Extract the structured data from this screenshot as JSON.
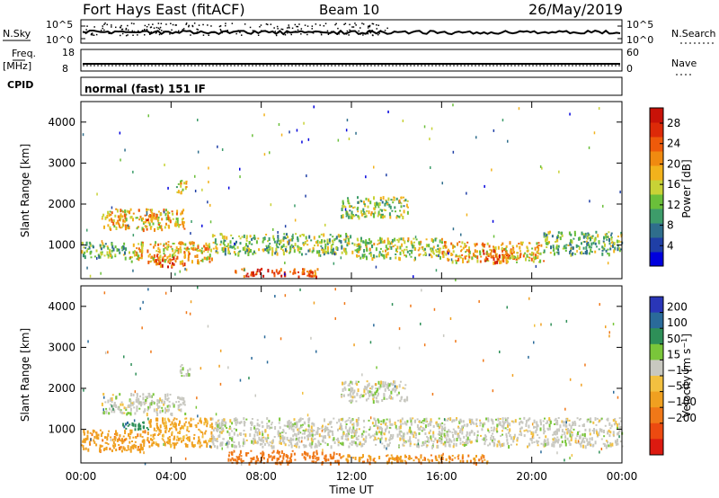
{
  "header": {
    "radar": "Fort Hays East (fitACF)",
    "beam": "Beam 10",
    "date": "26/May/2019"
  },
  "top_panels": {
    "nsky_label": "N.Sky",
    "nsky_ticks": [
      "10^5",
      "10^0"
    ],
    "nsearch_label": "N.Search",
    "nsearch_ticks": [
      "10^5",
      "10^0"
    ],
    "freq_label_line1": "Freq.",
    "freq_label_line2": "[MHz]",
    "freq_ticks": [
      "18",
      "8"
    ],
    "nave_label": "Nave",
    "nave_ticks": [
      "60",
      "0"
    ],
    "cpid_label": "CPID",
    "cpid_value": "normal (fast) 151 IF"
  },
  "colors": {
    "power": [
      "#0000dd",
      "#1f3fa6",
      "#2f6e8c",
      "#3d9c6a",
      "#6abf3a",
      "#c8d236",
      "#f2b21c",
      "#f08a10",
      "#ee5a0a",
      "#dd2a08",
      "#c81208"
    ],
    "velocity": [
      "#2a36b8",
      "#2a6a9a",
      "#2e8f58",
      "#7ac63a",
      "#c8c8c0",
      "#f2c040",
      "#f0a020",
      "#f07818",
      "#ec4a10",
      "#dc1a10"
    ]
  },
  "chart_data": [
    {
      "type": "heatmap",
      "name": "power",
      "ylabel": "Slant Range [km]",
      "xlabel": "",
      "ylim": [
        180,
        4500
      ],
      "y_ticks": [
        "1000",
        "2000",
        "3000",
        "4000"
      ],
      "y_tick_values": [
        1000,
        2000,
        3000,
        4000
      ],
      "colorbar_label": "Power [dB]",
      "colorbar_ticks": [
        "4",
        "8",
        "12",
        "16",
        "20",
        "24",
        "28"
      ],
      "colorbar_values": [
        4,
        8,
        12,
        16,
        20,
        24,
        28
      ],
      "clim": [
        0,
        31
      ],
      "echo_regions": [
        {
          "t0": 0.9,
          "t1": 4.6,
          "r0": 1400,
          "r1": 1900,
          "level": 18
        },
        {
          "t0": 2.8,
          "t1": 3.4,
          "r0": 1550,
          "r1": 1800,
          "level": 24
        },
        {
          "t0": 0.0,
          "t1": 2.0,
          "r0": 700,
          "r1": 1100,
          "level": 12
        },
        {
          "t0": 2.0,
          "t1": 5.8,
          "r0": 600,
          "r1": 1100,
          "level": 18
        },
        {
          "t0": 3.2,
          "t1": 4.6,
          "r0": 500,
          "r1": 800,
          "level": 24
        },
        {
          "t0": 5.8,
          "t1": 12.0,
          "r0": 800,
          "r1": 1300,
          "level": 13
        },
        {
          "t0": 12.0,
          "t1": 16.0,
          "r0": 700,
          "r1": 1200,
          "level": 15
        },
        {
          "t0": 16.0,
          "t1": 20.5,
          "r0": 600,
          "r1": 1100,
          "level": 19
        },
        {
          "t0": 17.8,
          "t1": 19.0,
          "r0": 600,
          "r1": 900,
          "level": 24
        },
        {
          "t0": 20.5,
          "t1": 24.0,
          "r0": 800,
          "r1": 1350,
          "level": 12
        },
        {
          "t0": 6.8,
          "t1": 10.5,
          "r0": 250,
          "r1": 450,
          "level": 25
        },
        {
          "t0": 11.5,
          "t1": 14.5,
          "r0": 1700,
          "r1": 2200,
          "level": 14
        },
        {
          "t0": 4.2,
          "t1": 4.8,
          "r0": 2300,
          "r1": 2600,
          "level": 16
        }
      ]
    },
    {
      "type": "heatmap",
      "name": "velocity",
      "ylabel": "Slant Range [km]",
      "xlabel": "Time UT",
      "ylim": [
        180,
        4500
      ],
      "y_ticks": [
        "1000",
        "2000",
        "3000",
        "4000"
      ],
      "y_tick_values": [
        1000,
        2000,
        3000,
        4000
      ],
      "x_ticks": [
        "00:00",
        "04:00",
        "08:00",
        "12:00",
        "16:00",
        "20:00",
        "00:00"
      ],
      "x_tick_hours": [
        0,
        4,
        8,
        12,
        16,
        20,
        24
      ],
      "colorbar_label": "Velocity [m s^-1]",
      "colorbar_ticks": [
        "200",
        "100",
        "50",
        "15",
        "−15",
        "−50",
        "−100",
        "−200"
      ],
      "echo_regions": [
        {
          "t0": 0.9,
          "t1": 4.6,
          "r0": 1400,
          "r1": 1900,
          "vel": 0
        },
        {
          "t0": 0.0,
          "t1": 3.0,
          "r0": 500,
          "r1": 1000,
          "vel": -60
        },
        {
          "t0": 3.0,
          "t1": 5.8,
          "r0": 600,
          "r1": 1300,
          "vel": -40
        },
        {
          "t0": 1.8,
          "t1": 3.0,
          "r0": 1000,
          "r1": 1200,
          "vel": 60
        },
        {
          "t0": 5.8,
          "t1": 24.0,
          "r0": 600,
          "r1": 1300,
          "vel": 0
        },
        {
          "t0": 6.5,
          "t1": 11.5,
          "r0": 200,
          "r1": 500,
          "vel": -130
        },
        {
          "t0": 11.5,
          "t1": 18.0,
          "r0": 200,
          "r1": 400,
          "vel": -70
        },
        {
          "t0": 11.5,
          "t1": 14.5,
          "r0": 1700,
          "r1": 2200,
          "vel": 0
        },
        {
          "t0": 4.2,
          "t1": 4.8,
          "r0": 2300,
          "r1": 2600,
          "vel": 0
        }
      ]
    }
  ]
}
